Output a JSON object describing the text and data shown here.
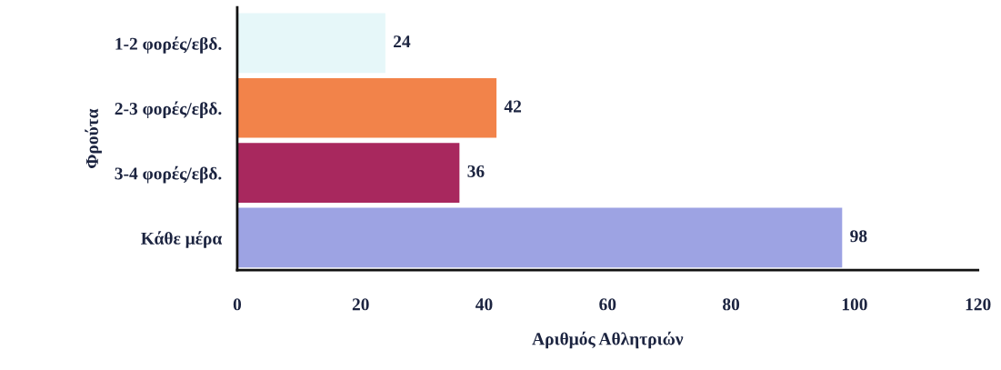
{
  "chart_data": {
    "type": "bar",
    "orientation": "horizontal",
    "ylabel": "Φρούτα",
    "xlabel": "Αριθμός Αθλητριών",
    "categories": [
      "1-2 φορές/εβδ.",
      "2-3 φορές/εβδ.",
      "3-4 φορές/εβδ.",
      "Κάθε μέρα"
    ],
    "values": [
      24,
      42,
      36,
      98
    ],
    "colors": [
      "#e6f7f9",
      "#f2834a",
      "#a8285e",
      "#9da3e3"
    ],
    "xlim": [
      0,
      120
    ],
    "xticks": [
      0,
      20,
      40,
      60,
      80,
      100,
      120
    ],
    "data_labels": true,
    "grid": false,
    "legend": false
  }
}
